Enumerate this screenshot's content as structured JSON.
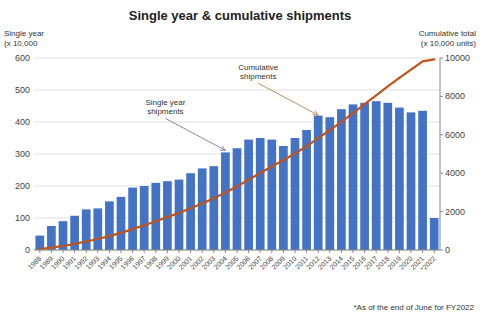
{
  "chart_data": {
    "type": "bar",
    "title": "Single year & cumulative shipments",
    "ylabel": "Single year\n(x 10,000",
    "y2label": "Cumulative total\n(x 10,000 units)",
    "footnote": "*As of the end of June for FY2022",
    "categories": [
      "1988",
      "1989",
      "1990",
      "1991",
      "1992",
      "1993",
      "1994",
      "1995",
      "1996",
      "1997",
      "1998",
      "1999",
      "2000",
      "2001",
      "2002",
      "2003",
      "2004",
      "2005",
      "2006",
      "2007",
      "2008",
      "2009",
      "2010",
      "2011",
      "2012",
      "2013",
      "2014",
      "2015",
      "2016",
      "2017",
      "2018",
      "2019",
      "2020",
      "2021",
      "*2022"
    ],
    "series": [
      {
        "type": "bar",
        "color": "#4472C4",
        "values": [
          45,
          75,
          90,
          107,
          127,
          130,
          152,
          166,
          195,
          200,
          210,
          215,
          220,
          240,
          255,
          262,
          305,
          318,
          345,
          350,
          345,
          325,
          350,
          375,
          420,
          415,
          440,
          455,
          460,
          465,
          460,
          445,
          430,
          435,
          100
        ]
      },
      {
        "type": "line",
        "color": "#C0531A",
        "axis": "y2",
        "values": [
          45,
          120,
          210,
          317,
          444,
          574,
          726,
          892,
          1087,
          1287,
          1497,
          1712,
          1932,
          2172,
          2427,
          2689,
          2994,
          3312,
          3657,
          4007,
          4352,
          4677,
          5027,
          5402,
          5822,
          6237,
          6677,
          7132,
          7592,
          8057,
          8517,
          8962,
          9392,
          9827,
          9927
        ]
      }
    ],
    "ylim": [
      0,
      600
    ],
    "yticks": [
      0,
      100,
      200,
      300,
      400,
      500,
      600
    ],
    "y2lim": [
      0,
      10000
    ],
    "y2ticks": [
      0,
      2000,
      4000,
      6000,
      8000,
      10000
    ],
    "grid": true,
    "annotations": [
      {
        "text": "Single year\nshipments",
        "x": "2004",
        "y": 305
      },
      {
        "text": "Cumulative\nshipments",
        "x": "2012",
        "y": 415
      }
    ]
  }
}
